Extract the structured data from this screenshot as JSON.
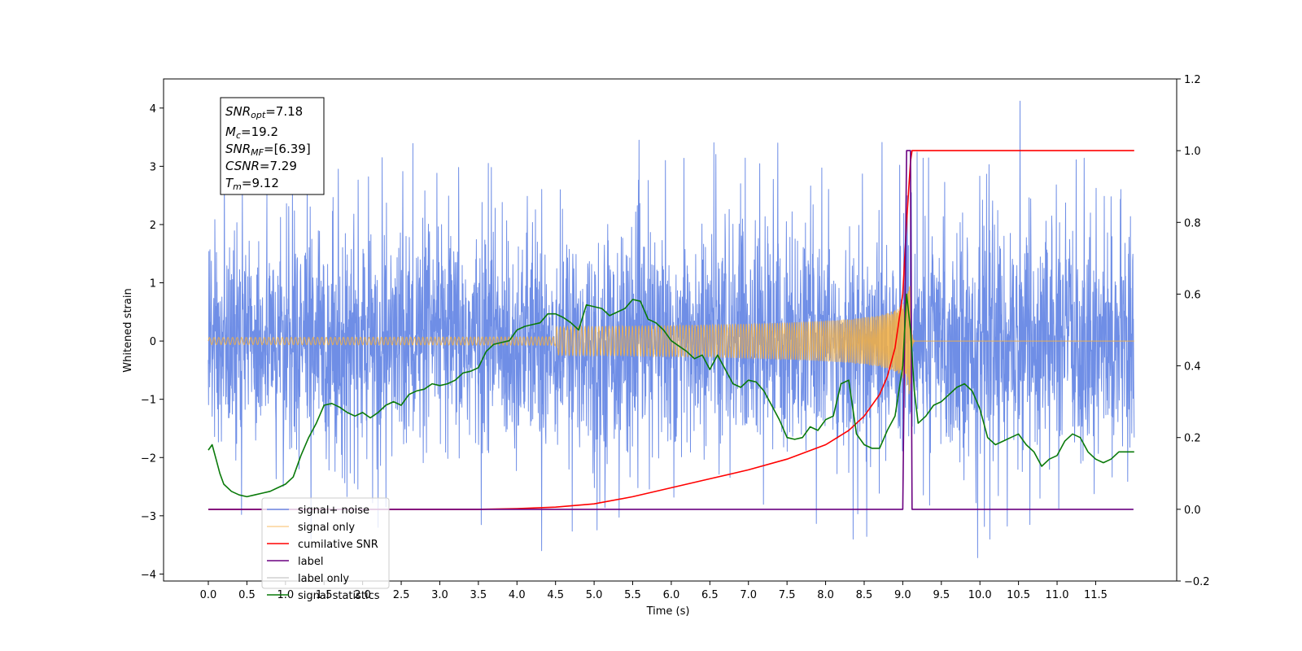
{
  "chart_data": {
    "type": "line",
    "xlabel": "Time (s)",
    "ylabel": "Whitened strain",
    "xlim": [
      -0.58,
      12.55
    ],
    "ylim": [
      -4.12,
      4.5
    ],
    "y2lim": [
      -0.2,
      1.2
    ],
    "grid": false,
    "legend_placement": "lower-left",
    "x_ticks": [
      "0.0",
      "0.5",
      "1.0",
      "1.5",
      "2.0",
      "2.5",
      "3.0",
      "3.5",
      "4.0",
      "4.5",
      "5.0",
      "5.5",
      "6.0",
      "6.5",
      "7.0",
      "7.5",
      "8.0",
      "8.5",
      "9.0",
      "9.5",
      "10.0",
      "10.5",
      "11.0",
      "11.5"
    ],
    "y_ticks": [
      "4",
      "3",
      "2",
      "1",
      "0",
      "−1",
      "−2",
      "−3",
      "−4"
    ],
    "y2_ticks": [
      "1.2",
      "1.0",
      "0.8",
      "0.6",
      "0.4",
      "0.2",
      "0.0",
      "−0.2"
    ],
    "annotation": [
      {
        "main": "SNR",
        "sub": "opt",
        "value": "=7.18"
      },
      {
        "main": "M",
        "sub": "c",
        "value": "=19.2"
      },
      {
        "main": "SNR",
        "sub": "MF",
        "value": "=[6.39]"
      },
      {
        "main": "CSNR",
        "sub": "",
        "value": "=7.29"
      },
      {
        "main": "T",
        "sub": "m",
        "value": "=9.12"
      }
    ],
    "series": [
      {
        "name": "signal+ noise",
        "color": "#6f8ee6",
        "axis": "left",
        "style": "noise",
        "x_range": [
          0.0,
          12.0
        ],
        "typical_range": [
          -1.9,
          1.9
        ],
        "peak_max": 4.12,
        "peak_min": -3.72
      },
      {
        "name": "signal only",
        "color": "#f5b041",
        "axis": "left",
        "style": "chirp",
        "x_range": [
          0.0,
          12.0
        ],
        "merger_time": 9.1,
        "peak_amplitude": 0.95
      },
      {
        "name": "cumilative SNR",
        "color": "#ff0000",
        "axis": "right",
        "x": [
          0.0,
          3.5,
          4.0,
          4.5,
          5.0,
          5.5,
          6.0,
          6.5,
          7.0,
          7.5,
          8.0,
          8.3,
          8.5,
          8.7,
          8.8,
          8.9,
          9.0,
          9.05,
          9.1,
          9.12,
          10.0,
          11.0,
          12.0
        ],
        "values": [
          0.0,
          0.0,
          0.002,
          0.006,
          0.015,
          0.035,
          0.06,
          0.085,
          0.11,
          0.14,
          0.18,
          0.22,
          0.26,
          0.32,
          0.37,
          0.45,
          0.6,
          0.8,
          0.97,
          1.0,
          1.0,
          1.0,
          1.0
        ]
      },
      {
        "name": "label",
        "color": "#6a0080",
        "axis": "right",
        "x": [
          0.0,
          9.0,
          9.05,
          9.1,
          9.12,
          11.99
        ],
        "values": [
          0.0,
          0.0,
          1.0,
          1.0,
          0.0,
          0.0
        ]
      },
      {
        "name": "label only",
        "color": "#d0d0d0",
        "axis": "right",
        "x": [],
        "values": []
      },
      {
        "name": "signal statistics",
        "color": "#0a7a0a",
        "axis": "right",
        "x": [
          0.0,
          0.05,
          0.1,
          0.15,
          0.2,
          0.3,
          0.4,
          0.5,
          0.6,
          0.7,
          0.8,
          0.9,
          1.0,
          1.1,
          1.2,
          1.3,
          1.4,
          1.5,
          1.6,
          1.7,
          1.8,
          1.9,
          2.0,
          2.1,
          2.2,
          2.3,
          2.4,
          2.5,
          2.6,
          2.7,
          2.8,
          2.9,
          3.0,
          3.1,
          3.2,
          3.3,
          3.4,
          3.5,
          3.6,
          3.7,
          3.8,
          3.9,
          4.0,
          4.1,
          4.2,
          4.3,
          4.4,
          4.5,
          4.6,
          4.7,
          4.8,
          4.9,
          5.0,
          5.1,
          5.2,
          5.3,
          5.4,
          5.5,
          5.6,
          5.7,
          5.8,
          5.9,
          6.0,
          6.1,
          6.2,
          6.3,
          6.4,
          6.5,
          6.6,
          6.7,
          6.8,
          6.9,
          7.0,
          7.1,
          7.2,
          7.3,
          7.4,
          7.5,
          7.6,
          7.7,
          7.8,
          7.9,
          8.0,
          8.1,
          8.2,
          8.3,
          8.4,
          8.5,
          8.6,
          8.7,
          8.8,
          8.9,
          9.0,
          9.05,
          9.1,
          9.15,
          9.2,
          9.3,
          9.4,
          9.5,
          9.6,
          9.7,
          9.8,
          9.9,
          10.0,
          10.1,
          10.2,
          10.3,
          10.4,
          10.5,
          10.6,
          10.7,
          10.8,
          10.9,
          11.0,
          11.1,
          11.2,
          11.3,
          11.4,
          11.5,
          11.6,
          11.7,
          11.8,
          11.9,
          12.0
        ],
        "values": [
          0.165,
          0.18,
          0.14,
          0.1,
          0.07,
          0.05,
          0.04,
          0.035,
          0.04,
          0.045,
          0.05,
          0.06,
          0.07,
          0.09,
          0.15,
          0.2,
          0.24,
          0.29,
          0.295,
          0.285,
          0.27,
          0.26,
          0.27,
          0.255,
          0.27,
          0.29,
          0.3,
          0.29,
          0.32,
          0.33,
          0.335,
          0.35,
          0.345,
          0.35,
          0.36,
          0.38,
          0.385,
          0.395,
          0.44,
          0.46,
          0.465,
          0.47,
          0.5,
          0.51,
          0.515,
          0.52,
          0.545,
          0.545,
          0.535,
          0.52,
          0.5,
          0.57,
          0.565,
          0.56,
          0.54,
          0.55,
          0.56,
          0.585,
          0.58,
          0.53,
          0.52,
          0.5,
          0.47,
          0.455,
          0.44,
          0.42,
          0.43,
          0.39,
          0.43,
          0.39,
          0.35,
          0.34,
          0.36,
          0.355,
          0.33,
          0.29,
          0.25,
          0.2,
          0.195,
          0.2,
          0.23,
          0.22,
          0.25,
          0.26,
          0.35,
          0.36,
          0.21,
          0.18,
          0.17,
          0.17,
          0.22,
          0.26,
          0.4,
          0.6,
          0.5,
          0.33,
          0.24,
          0.26,
          0.29,
          0.3,
          0.32,
          0.34,
          0.35,
          0.33,
          0.28,
          0.2,
          0.18,
          0.19,
          0.2,
          0.21,
          0.18,
          0.16,
          0.12,
          0.14,
          0.15,
          0.19,
          0.21,
          0.2,
          0.16,
          0.14,
          0.13,
          0.14,
          0.16,
          0.16,
          0.16
        ]
      }
    ],
    "legend": [
      "signal+ noise",
      "signal only",
      "cumilative SNR",
      "label",
      "label only",
      "signal statistics"
    ]
  }
}
